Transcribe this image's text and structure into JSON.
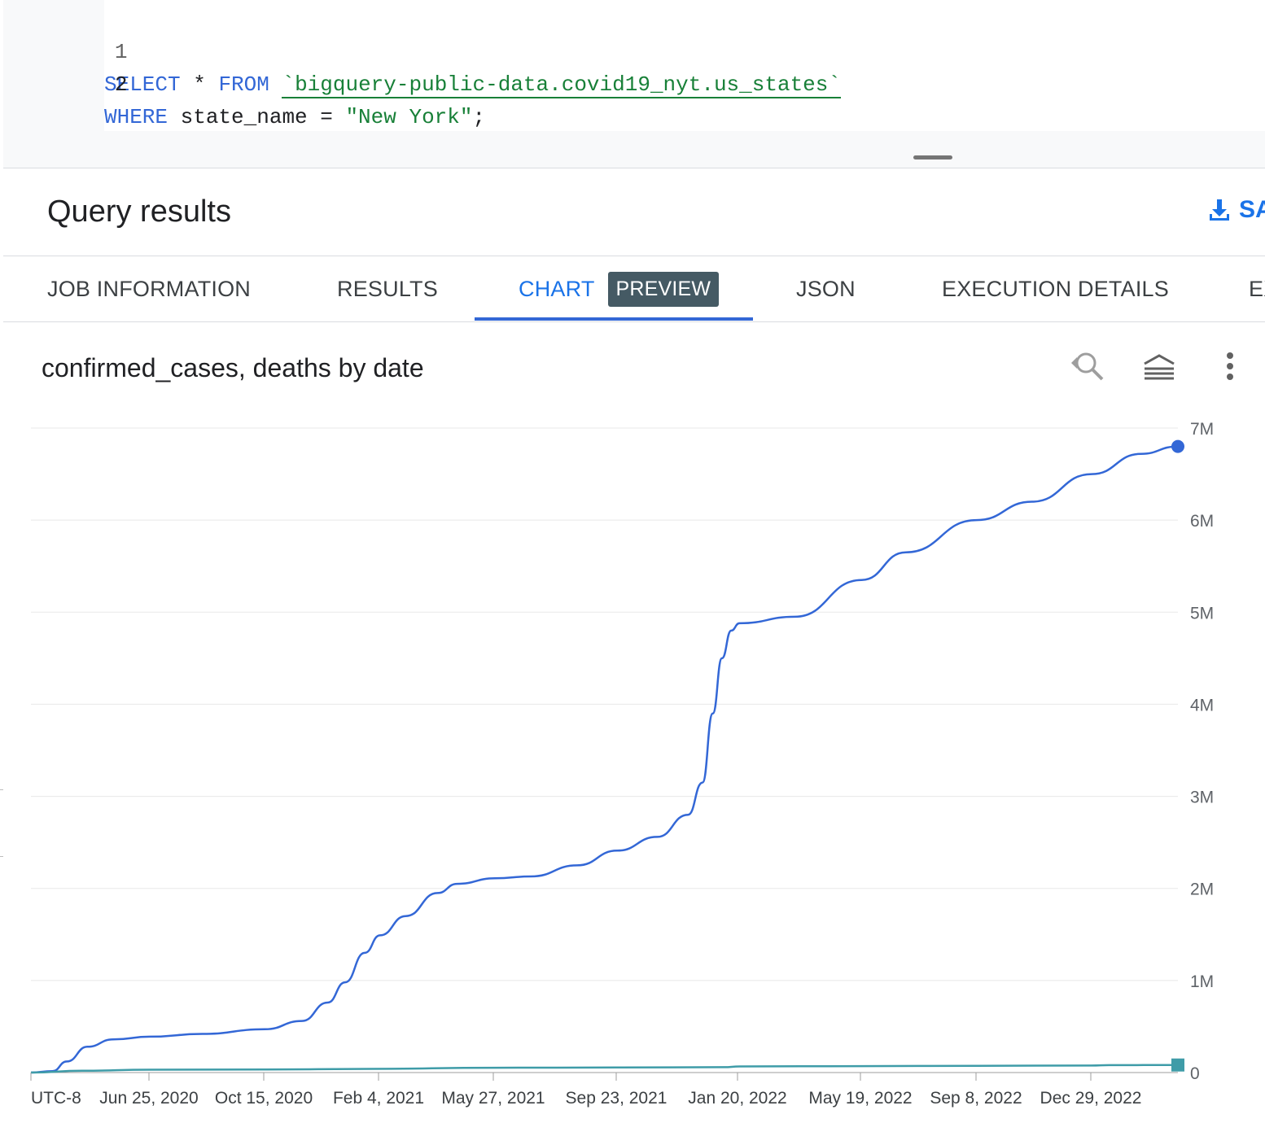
{
  "editor": {
    "lines": [
      {
        "number": "1",
        "tokens": [
          "SELECT",
          " * ",
          "FROM",
          " ",
          "`bigquery-public-data.covid19_nyt.us_states`"
        ]
      },
      {
        "number": "2",
        "tokens": [
          "WHERE",
          " state_name = ",
          "\"New York\"",
          ";"
        ]
      }
    ]
  },
  "results": {
    "title": "Query results",
    "save_label": "SA"
  },
  "tabs": [
    {
      "label": "JOB INFORMATION"
    },
    {
      "label": "RESULTS"
    },
    {
      "label": "CHART",
      "badge": "PREVIEW",
      "active": true
    },
    {
      "label": "JSON"
    },
    {
      "label": "EXECUTION DETAILS"
    },
    {
      "label": "EX"
    }
  ],
  "chart": {
    "title": "confirmed_cases, deaths by date",
    "icons": [
      "zoom-reset-icon",
      "stacked-series-icon",
      "more-vert-icon"
    ]
  },
  "colors": {
    "accent": "#1a73e8",
    "series_cases": "#3367d6",
    "series_deaths": "#3f9ca8",
    "keyword": "#3367d6",
    "string": "#188038"
  },
  "chart_data": {
    "type": "line",
    "title": "confirmed_cases, deaths by date",
    "x_tick_labels": [
      "UTC-8",
      "Jun 25, 2020",
      "Oct 15, 2020",
      "Feb 4, 2021",
      "May 27, 2021",
      "Sep 23, 2021",
      "Jan 20, 2022",
      "May 19, 2022",
      "Sep 8, 2022",
      "Dec 29, 2022"
    ],
    "y_tick_labels": [
      "0",
      "1M",
      "2M",
      "3M",
      "4M",
      "5M",
      "6M",
      "7M"
    ],
    "ylim": [
      0,
      7000000
    ],
    "xlim": [
      "2020-03-01",
      "2023-03-23"
    ],
    "grid": true,
    "y_axis_position": "right",
    "series": [
      {
        "name": "confirmed_cases",
        "color": "#3367d6",
        "marker": "circle",
        "points": [
          [
            "2020-03-01",
            0
          ],
          [
            "2020-03-22",
            15000
          ],
          [
            "2020-04-05",
            120000
          ],
          [
            "2020-04-25",
            280000
          ],
          [
            "2020-05-20",
            360000
          ],
          [
            "2020-06-25",
            390000
          ],
          [
            "2020-08-15",
            420000
          ],
          [
            "2020-10-15",
            470000
          ],
          [
            "2020-11-20",
            560000
          ],
          [
            "2020-12-15",
            760000
          ],
          [
            "2021-01-01",
            980000
          ],
          [
            "2021-01-20",
            1300000
          ],
          [
            "2021-02-04",
            1490000
          ],
          [
            "2021-03-01",
            1700000
          ],
          [
            "2021-04-01",
            1950000
          ],
          [
            "2021-04-20",
            2050000
          ],
          [
            "2021-05-27",
            2110000
          ],
          [
            "2021-07-01",
            2130000
          ],
          [
            "2021-08-15",
            2250000
          ],
          [
            "2021-09-23",
            2410000
          ],
          [
            "2021-11-01",
            2560000
          ],
          [
            "2021-12-01",
            2800000
          ],
          [
            "2021-12-15",
            3150000
          ],
          [
            "2021-12-25",
            3900000
          ],
          [
            "2022-01-03",
            4500000
          ],
          [
            "2022-01-12",
            4800000
          ],
          [
            "2022-01-20",
            4880000
          ],
          [
            "2022-03-15",
            4950000
          ],
          [
            "2022-05-19",
            5350000
          ],
          [
            "2022-07-01",
            5650000
          ],
          [
            "2022-09-08",
            6000000
          ],
          [
            "2022-11-01",
            6200000
          ],
          [
            "2022-12-29",
            6500000
          ],
          [
            "2023-02-15",
            6720000
          ],
          [
            "2023-03-23",
            6800000
          ]
        ]
      },
      {
        "name": "deaths",
        "color": "#3f9ca8",
        "marker": "square",
        "points": [
          [
            "2020-03-01",
            0
          ],
          [
            "2020-04-20",
            20000
          ],
          [
            "2020-06-25",
            31000
          ],
          [
            "2020-10-15",
            33000
          ],
          [
            "2021-01-25",
            40000
          ],
          [
            "2021-05-27",
            52000
          ],
          [
            "2021-09-23",
            55000
          ],
          [
            "2022-01-05",
            58000
          ],
          [
            "2022-01-20",
            66000
          ],
          [
            "2022-05-19",
            70000
          ],
          [
            "2022-09-08",
            73000
          ],
          [
            "2022-12-29",
            76000
          ],
          [
            "2023-01-15",
            80000
          ],
          [
            "2023-03-23",
            82000
          ]
        ]
      }
    ]
  }
}
